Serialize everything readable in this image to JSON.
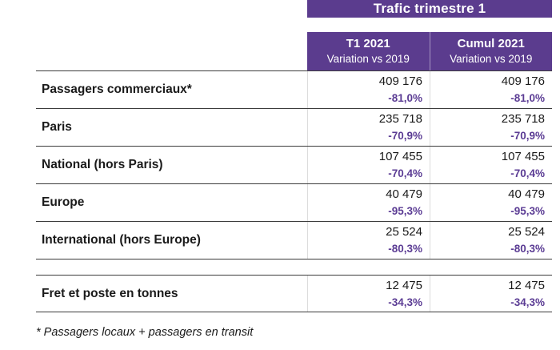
{
  "title_band": {
    "label": "Trafic trimestre 1"
  },
  "header": {
    "columns": [
      {
        "period": "T1 2021",
        "sub": "Variation vs 2019"
      },
      {
        "period": "Cumul 2021",
        "sub": "Variation vs 2019"
      }
    ]
  },
  "table": {
    "rows": [
      {
        "label": "Passagers commerciaux*",
        "t1_value": "409 176",
        "t1_variation": "-81,0%",
        "cumul_value": "409 176",
        "cumul_variation": "-81,0%"
      },
      {
        "label": "Paris",
        "t1_value": "235 718",
        "t1_variation": "-70,9%",
        "cumul_value": "235 718",
        "cumul_variation": "-70,9%"
      },
      {
        "label": "National (hors Paris)",
        "t1_value": "107 455",
        "t1_variation": "-70,4%",
        "cumul_value": "107 455",
        "cumul_variation": "-70,4%"
      },
      {
        "label": "Europe",
        "t1_value": "40 479",
        "t1_variation": "-95,3%",
        "cumul_value": "40 479",
        "cumul_variation": "-95,3%"
      },
      {
        "label": "International (hors Europe)",
        "t1_value": "25 524",
        "t1_variation": "-80,3%",
        "cumul_value": "25 524",
        "cumul_variation": "-80,3%"
      },
      {
        "label": "Fret et poste en tonnes",
        "t1_value": "12 475",
        "t1_variation": "-34,3%",
        "cumul_value": "12 475",
        "cumul_variation": "-34,3%"
      }
    ]
  },
  "footnote": "* Passagers locaux + passagers en transit",
  "colors": {
    "band_purple": "#5b3c8e",
    "variation_purple": "#5b3c94",
    "rule_dark": "#3c3c3c",
    "rule_light": "#dcdcdc"
  },
  "chart_data": {
    "type": "table",
    "title": "Trafic trimestre 1",
    "columns": [
      "T1 2021 Variation vs 2019",
      "Cumul 2021 Variation vs 2019"
    ],
    "rows": [
      {
        "label": "Passagers commerciaux*",
        "t1_2021": 409176,
        "t1_variation_pct": -81.0,
        "cumul_2021": 409176,
        "cumul_variation_pct": -81.0
      },
      {
        "label": "Paris",
        "t1_2021": 235718,
        "t1_variation_pct": -70.9,
        "cumul_2021": 235718,
        "cumul_variation_pct": -70.9
      },
      {
        "label": "National (hors Paris)",
        "t1_2021": 107455,
        "t1_variation_pct": -70.4,
        "cumul_2021": 107455,
        "cumul_variation_pct": -70.4
      },
      {
        "label": "Europe",
        "t1_2021": 40479,
        "t1_variation_pct": -95.3,
        "cumul_2021": 40479,
        "cumul_variation_pct": -95.3
      },
      {
        "label": "International (hors Europe)",
        "t1_2021": 25524,
        "t1_variation_pct": -80.3,
        "cumul_2021": 25524,
        "cumul_variation_pct": -80.3
      },
      {
        "label": "Fret et poste en tonnes",
        "t1_2021": 12475,
        "t1_variation_pct": -34.3,
        "cumul_2021": 12475,
        "cumul_variation_pct": -34.3
      }
    ],
    "footnote": "* Passagers locaux + passagers en transit"
  }
}
